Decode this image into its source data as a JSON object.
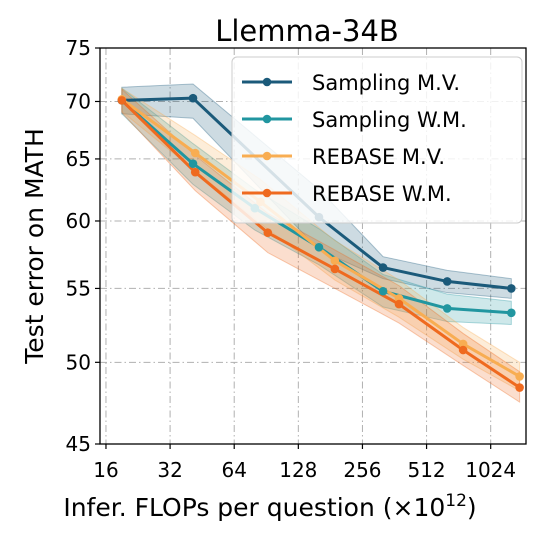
{
  "chart_data": {
    "type": "line",
    "title": "Llemma-34B",
    "xlabel": "Infer. FLOPs per question",
    "xlabel_unit_base": "×10",
    "xlabel_unit_exp": "12",
    "ylabel": "Test error on MATH",
    "x_scale": "log2",
    "y_scale": "log",
    "xlim": [
      15,
      1500
    ],
    "ylim": [
      45,
      75
    ],
    "xticks": [
      16,
      32,
      64,
      128,
      256,
      512,
      1024
    ],
    "xtick_labels": [
      "16",
      "32",
      "64",
      "128",
      "256",
      "512",
      "1024"
    ],
    "yticks": [
      45,
      50,
      55,
      60,
      65,
      70,
      75
    ],
    "ytick_labels": [
      "45",
      "50",
      "55",
      "60",
      "65",
      "70",
      "75"
    ],
    "grid": true,
    "legend_position": "top-right",
    "series": [
      {
        "name": "Sampling M.V.",
        "color": "#1b5a7a",
        "x": [
          19,
          41,
          160,
          320,
          640,
          1280
        ],
        "y": [
          70.1,
          70.3,
          60.3,
          56.5,
          55.5,
          55.0
        ],
        "upper": [
          71.3,
          71.6,
          62.5,
          57.3,
          56.3,
          55.7
        ],
        "lower": [
          68.9,
          68.5,
          57.8,
          55.7,
          54.7,
          54.3
        ]
      },
      {
        "name": "Sampling W.M.",
        "color": "#2196a0",
        "x": [
          19,
          41,
          80,
          160,
          320,
          640,
          1280
        ],
        "y": [
          70.1,
          64.6,
          61.0,
          58.0,
          54.8,
          53.6,
          53.3
        ],
        "upper": [
          71.2,
          66.3,
          62.5,
          59.4,
          56.0,
          54.6,
          54.1
        ],
        "lower": [
          68.9,
          62.9,
          59.3,
          56.7,
          53.7,
          52.7,
          52.5
        ]
      },
      {
        "name": "REBASE M.V.",
        "color": "#f8ad52",
        "x": [
          19,
          42,
          85,
          190,
          380,
          760,
          1400
        ],
        "y": [
          70.2,
          65.5,
          61.5,
          57.0,
          54.3,
          51.2,
          49.1
        ],
        "upper": [
          71.2,
          67.0,
          63.3,
          58.5,
          55.6,
          52.3,
          50.0
        ],
        "lower": [
          69.1,
          64.0,
          59.8,
          55.6,
          53.0,
          50.2,
          48.2
        ]
      },
      {
        "name": "REBASE W.M.",
        "color": "#ef6a1f",
        "x": [
          19,
          42,
          92,
          190,
          380,
          760,
          1400
        ],
        "y": [
          70.1,
          63.9,
          59.1,
          56.4,
          53.9,
          50.8,
          48.4
        ],
        "upper": [
          71.1,
          65.3,
          60.6,
          57.8,
          55.2,
          51.9,
          49.4
        ],
        "lower": [
          69.0,
          62.4,
          57.6,
          55.0,
          52.6,
          49.8,
          47.5
        ]
      }
    ]
  }
}
